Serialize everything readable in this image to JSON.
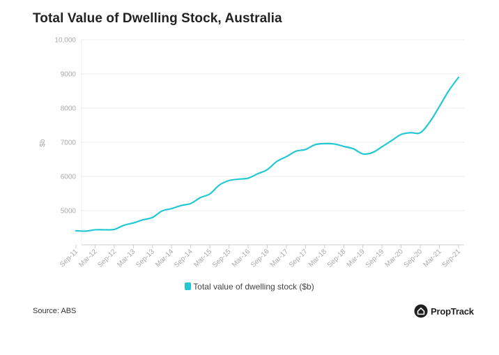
{
  "title": "Total Value of Dwelling Stock, Australia",
  "source": "Source: ABS",
  "brand": {
    "name": "PropTrack",
    "icon": "proptrack-logo-icon"
  },
  "colors": {
    "line": "#22c8d2",
    "grid": "#eeeeee",
    "axis": "#cccccc",
    "tick": "#aaaaaa"
  },
  "chart_data": {
    "type": "line",
    "title": "Total Value of Dwelling Stock, Australia",
    "xlabel": "",
    "ylabel": "$b",
    "ylim": [
      4000,
      10000
    ],
    "yticks": [
      5000,
      6000,
      7000,
      8000,
      9000,
      10000
    ],
    "ytick_labels": [
      "5000",
      "6000",
      "7000",
      "8000",
      "9000",
      "10,000"
    ],
    "x": [
      "Sep-11",
      "Dec-11",
      "Mar-12",
      "Jun-12",
      "Sep-12",
      "Dec-12",
      "Mar-13",
      "Jun-13",
      "Sep-13",
      "Dec-13",
      "Mar-14",
      "Jun-14",
      "Sep-14",
      "Dec-14",
      "Mar-15",
      "Jun-15",
      "Sep-15",
      "Dec-15",
      "Mar-16",
      "Jun-16",
      "Sep-16",
      "Dec-16",
      "Mar-17",
      "Jun-17",
      "Sep-17",
      "Dec-17",
      "Mar-18",
      "Jun-18",
      "Sep-18",
      "Dec-18",
      "Mar-19",
      "Jun-19",
      "Sep-19",
      "Dec-19",
      "Mar-20",
      "Jun-20",
      "Sep-20",
      "Dec-20",
      "Mar-21",
      "Jun-21",
      "Sep-21"
    ],
    "xtick_labels": [
      "Sep-11",
      "Mar-12",
      "Sep-12",
      "Mar-13",
      "Sep-13",
      "Mar-14",
      "Sep-14",
      "Mar-15",
      "Sep-15",
      "Mar-16",
      "Sep-16",
      "Mar-17",
      "Sep-17",
      "Mar-18",
      "Sep-18",
      "Mar-19",
      "Sep-19",
      "Mar-20",
      "Sep-20",
      "Mar-21",
      "Sep-21"
    ],
    "legend": {
      "position": "bottom"
    },
    "series": [
      {
        "name": "Total value of dwelling stock ($b)",
        "values": [
          4410,
          4400,
          4440,
          4440,
          4450,
          4570,
          4640,
          4730,
          4800,
          4990,
          5060,
          5150,
          5210,
          5380,
          5490,
          5750,
          5880,
          5920,
          5950,
          6080,
          6200,
          6440,
          6580,
          6740,
          6790,
          6930,
          6960,
          6950,
          6880,
          6810,
          6660,
          6700,
          6870,
          7050,
          7230,
          7280,
          7280,
          7600,
          8050,
          8520,
          8900
        ]
      }
    ]
  }
}
